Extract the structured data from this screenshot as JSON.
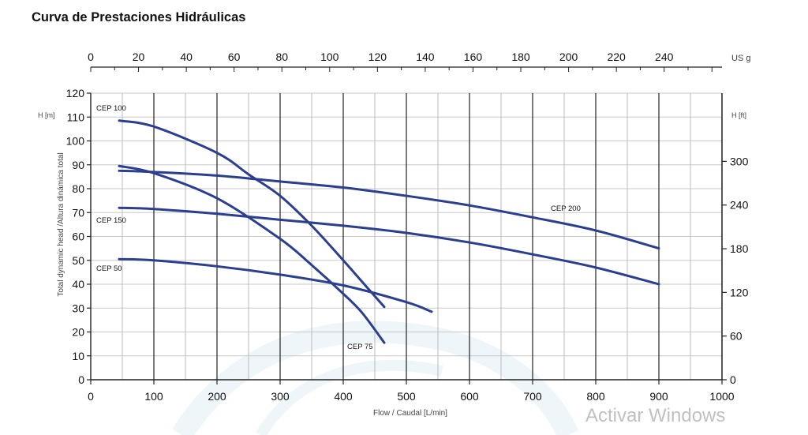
{
  "title": "Curva de Prestaciones Hidráulicas",
  "watermark": "Activar Windows",
  "colors": {
    "curve": "#2b3f8e",
    "grid": "#222222",
    "grid_minor": "#bbbbbb",
    "bg_swirl": "#cfe6ef"
  },
  "chart_data": {
    "type": "line",
    "title": "Curva de Prestaciones Hidráulicas",
    "xlabel": "Flow / Caudal [L/min]",
    "ylabel": "Total dynamic head /Altura dinámica total",
    "xlim": [
      0,
      1000
    ],
    "ylim": [
      0,
      120
    ],
    "x_ticks": [
      "0",
      "100",
      "200",
      "300",
      "400",
      "500",
      "600",
      "700",
      "800",
      "900",
      "1000"
    ],
    "y_ticks": [
      "0",
      "10",
      "20",
      "30",
      "40",
      "50",
      "60",
      "70",
      "80",
      "90",
      "100",
      "110",
      "120"
    ],
    "left_axis_unit": "H [m]",
    "right_axis": {
      "unit": "H [ft]",
      "ticks": [
        "0",
        "60",
        "120",
        "180",
        "240",
        "300"
      ]
    },
    "top_axis": {
      "unit": "US g",
      "ticks": [
        "0",
        "20",
        "40",
        "60",
        "80",
        "100",
        "120",
        "140",
        "160",
        "180",
        "200",
        "220",
        "240"
      ]
    },
    "grid": true,
    "series": [
      {
        "name": "CEP 50",
        "x": [
          45,
          100,
          200,
          300,
          400,
          500,
          540
        ],
        "y": [
          50.5,
          50,
          47.5,
          44,
          39.5,
          32.5,
          28.5
        ]
      },
      {
        "name": "CEP 75",
        "x": [
          45,
          100,
          200,
          300,
          350,
          400,
          430,
          465
        ],
        "y": [
          89.5,
          86.5,
          76,
          59,
          48,
          36,
          28,
          15.5
        ]
      },
      {
        "name": "CEP 100",
        "x": [
          45,
          100,
          200,
          250,
          300,
          350,
          400,
          430,
          465
        ],
        "y": [
          108.5,
          106,
          95,
          86,
          77,
          64.5,
          50,
          41,
          30.5
        ]
      },
      {
        "name": "CEP 150",
        "x": [
          45,
          100,
          200,
          300,
          400,
          500,
          600,
          700,
          800,
          900
        ],
        "y": [
          72,
          71.5,
          69.5,
          67,
          64.5,
          61.5,
          57.5,
          52.5,
          47,
          40
        ]
      },
      {
        "name": "CEP 200",
        "x": [
          45,
          100,
          200,
          300,
          400,
          500,
          600,
          700,
          800,
          900
        ],
        "y": [
          87.5,
          87,
          85.5,
          83,
          80.5,
          77,
          73,
          68,
          62.5,
          55
        ]
      }
    ],
    "annotations": [
      {
        "text": "CEP 100",
        "series": "CEP 100"
      },
      {
        "text": "CEP 150",
        "series": "CEP 150"
      },
      {
        "text": "CEP 50",
        "series": "CEP 50"
      },
      {
        "text": "CEP 75",
        "series": "CEP 75"
      },
      {
        "text": "CEP 200",
        "series": "CEP 200"
      }
    ]
  }
}
